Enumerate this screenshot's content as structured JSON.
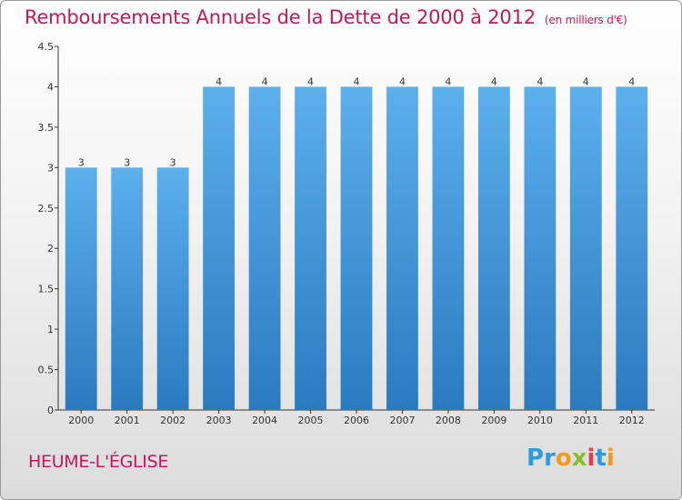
{
  "title": "Remboursements Annuels de la Dette de 2000 à 2012",
  "unit_note": "(en milliers d'€)",
  "commune": "HEUME-L'ÉGLISE",
  "logo": {
    "text": "Proxiti",
    "letters": [
      "P",
      "r",
      "o",
      "x",
      "i",
      "t",
      "i"
    ],
    "colors": [
      "#2e9be0",
      "#2e9be0",
      "#f29a1c",
      "#8bbf2a",
      "#e43b4f",
      "#2e9be0",
      "#f29a1c"
    ]
  },
  "colors": {
    "title": "#c2185b",
    "bar_top": "#5cb0ec",
    "bar_bottom": "#2a7ac0",
    "axis": "#333333"
  },
  "chart_data": {
    "type": "bar",
    "categories": [
      "2000",
      "2001",
      "2002",
      "2003",
      "2004",
      "2005",
      "2006",
      "2007",
      "2008",
      "2009",
      "2010",
      "2011",
      "2012"
    ],
    "values": [
      3,
      3,
      3,
      4,
      4,
      4,
      4,
      4,
      4,
      4,
      4,
      4,
      4
    ],
    "ylim": [
      0,
      4.5
    ],
    "yticks": [
      "0",
      "0.5",
      "1",
      "1.5",
      "2",
      "2.5",
      "3",
      "3.5",
      "4",
      "4.5"
    ],
    "grid": false,
    "title": "Remboursements Annuels de la Dette de 2000 à 2012",
    "xlabel": "",
    "ylabel": ""
  }
}
